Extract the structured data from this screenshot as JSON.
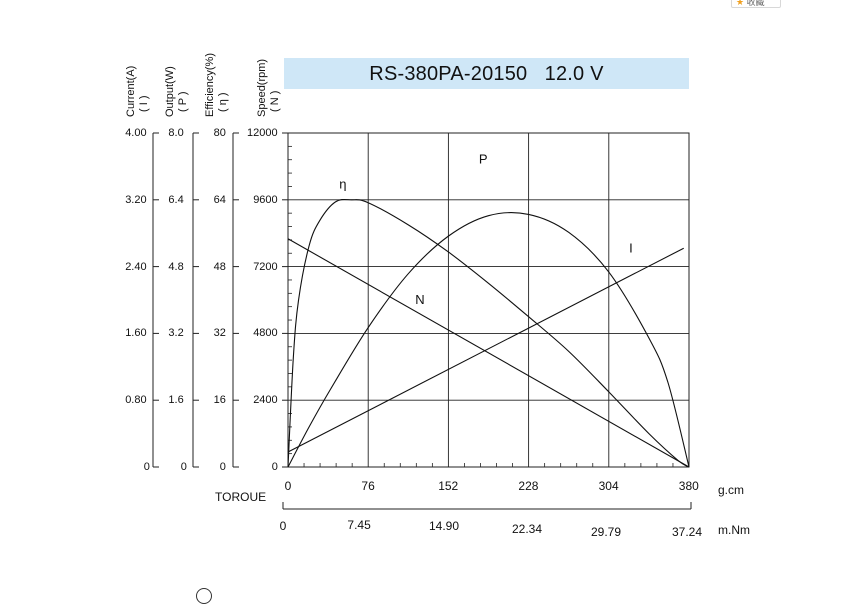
{
  "badge": {
    "icon": "star-icon",
    "label": "收藏"
  },
  "title": "RS-380PA-20150   12.0 V",
  "axes": {
    "current": {
      "label": "Current(A)",
      "symbol": "( I )",
      "ticks": [
        "4.00",
        "3.20",
        "2.40",
        "1.60",
        "0.80",
        "0"
      ]
    },
    "output": {
      "label": "Output(W)",
      "symbol": "( P )",
      "ticks": [
        "8.0",
        "6.4",
        "4.8",
        "3.2",
        "1.6",
        "0"
      ]
    },
    "efficiency": {
      "label": "Efficiency(%)",
      "symbol": "( η )",
      "ticks": [
        "80",
        "64",
        "48",
        "32",
        "16",
        "0"
      ]
    },
    "speed": {
      "label": "Speed(rpm)",
      "symbol": "( N )",
      "ticks": [
        "12000",
        "9600",
        "7200",
        "4800",
        "2400",
        "0"
      ]
    },
    "torque_label": "TOROUE",
    "torque_gcm": {
      "unit": "g.cm",
      "ticks": [
        "0",
        "76",
        "152",
        "228",
        "304",
        "380"
      ]
    },
    "torque_mnm": {
      "unit": "m.Nm",
      "ticks": [
        "0",
        "7.45",
        "14.90",
        "22.34",
        "29.79",
        "37.24"
      ]
    }
  },
  "chart_data": {
    "type": "line",
    "title": "RS-380PA-20150   12.0 V",
    "xlabel": "TOROUE",
    "xlim": [
      0,
      380
    ],
    "x_unit": "g.cm",
    "grid": true,
    "series": [
      {
        "name": "N",
        "axis": "speed",
        "ylim": [
          0,
          12000
        ],
        "x": [
          0,
          380
        ],
        "y": [
          8200,
          0
        ]
      },
      {
        "name": "I",
        "axis": "current",
        "ylim": [
          0,
          4.0
        ],
        "x": [
          0,
          375
        ],
        "y": [
          0.18,
          2.62
        ]
      },
      {
        "name": "P",
        "axis": "output",
        "ylim": [
          0,
          8.0
        ],
        "x": [
          0,
          20,
          40,
          76,
          114,
          152,
          190,
          228,
          266,
          304,
          342,
          360,
          380
        ],
        "y": [
          0,
          0.96,
          1.85,
          3.34,
          4.63,
          5.53,
          6.02,
          6.05,
          5.62,
          4.67,
          3.09,
          2.03,
          0
        ]
      },
      {
        "name": "η",
        "axis": "efficiency",
        "ylim": [
          0,
          80
        ],
        "x": [
          0,
          5,
          10,
          20,
          30,
          45,
          60,
          76,
          114,
          152,
          190,
          228,
          266,
          304,
          342,
          370,
          380
        ],
        "y": [
          0,
          26,
          40,
          53,
          59,
          63.5,
          64,
          63.3,
          58,
          51.5,
          44,
          36,
          27.7,
          18,
          8,
          1.5,
          0
        ]
      }
    ],
    "curve_labels": [
      {
        "text": "P",
        "x": 185,
        "y_speed": 10900
      },
      {
        "text": "η",
        "x": 52,
        "y_speed": 10000
      },
      {
        "text": "I",
        "x": 325,
        "y_speed": 7700
      },
      {
        "text": "N",
        "x": 125,
        "y_speed": 5850
      }
    ]
  }
}
